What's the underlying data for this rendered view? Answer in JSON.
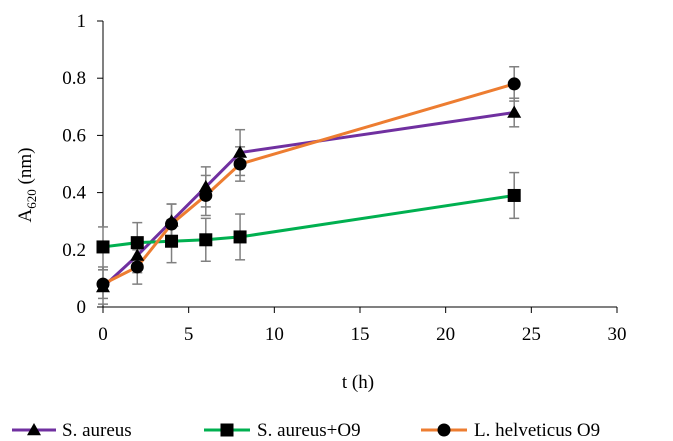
{
  "chart_data": {
    "type": "line",
    "xlabel": "t (h)",
    "ylabel_main": "A",
    "ylabel_sub": "620",
    "ylabel_unit": " (nm)",
    "xlim": [
      0,
      30
    ],
    "ylim": [
      0,
      1
    ],
    "xticks": [
      0,
      5,
      10,
      15,
      20,
      25,
      30
    ],
    "yticks": [
      0,
      0.2,
      0.4,
      0.6,
      0.8,
      1
    ],
    "xtick_labels": [
      "0",
      "5",
      "10",
      "15",
      "20",
      "25",
      "30"
    ],
    "ytick_labels": [
      "0",
      "0.2",
      "0.4",
      "0.6",
      "0.8",
      "1"
    ],
    "grid": false,
    "legend_position": "bottom",
    "series": [
      {
        "name": "S. aureus",
        "marker": "triangle",
        "color": "#7030a0",
        "x": [
          0,
          2,
          4,
          6,
          8,
          24
        ],
        "y": [
          0.07,
          0.18,
          0.3,
          0.42,
          0.54,
          0.68
        ],
        "error": [
          0.06,
          0.06,
          0.06,
          0.07,
          0.08,
          0.05
        ]
      },
      {
        "name": "S. aureus+O9",
        "marker": "square",
        "color": "#00b050",
        "x": [
          0,
          2,
          4,
          6,
          8,
          24
        ],
        "y": [
          0.21,
          0.225,
          0.23,
          0.235,
          0.245,
          0.39
        ],
        "error": [
          0.07,
          0.07,
          0.075,
          0.075,
          0.08,
          0.08
        ]
      },
      {
        "name": "L. helveticus O9",
        "marker": "circle",
        "color": "#ed7d31",
        "x": [
          0,
          2,
          4,
          6,
          8,
          24
        ],
        "y": [
          0.08,
          0.14,
          0.29,
          0.39,
          0.5,
          0.78
        ],
        "error": [
          0.05,
          0.06,
          0.07,
          0.07,
          0.06,
          0.06
        ]
      }
    ]
  }
}
